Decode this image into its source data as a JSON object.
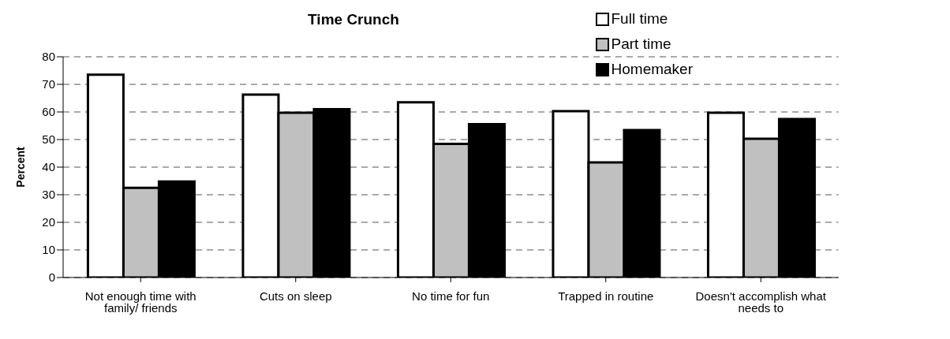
{
  "chart_data": {
    "type": "bar",
    "title": "Time Crunch",
    "ylabel": "Percent",
    "categories": [
      "Not enough time with family/ friends",
      "Cuts on sleep",
      "No time for fun",
      "Trapped in routine",
      "Doesn't accomplish what needs to"
    ],
    "series": [
      {
        "name": "Full time",
        "color": "#ffffff",
        "values": [
          73.5,
          66.3,
          63.5,
          60.3,
          59.7
        ]
      },
      {
        "name": "Part time",
        "color": "#c0c0c0",
        "values": [
          32.5,
          59.7,
          48.4,
          41.7,
          50.3
        ]
      },
      {
        "name": "Homemaker",
        "color": "#000000",
        "values": [
          34.8,
          61,
          55.6,
          53.4,
          57.4
        ]
      }
    ],
    "ylim": [
      0,
      80
    ],
    "yticks": [
      0,
      10,
      20,
      30,
      40,
      50,
      60,
      70,
      80
    ],
    "grid": "y",
    "legend": "top right"
  }
}
